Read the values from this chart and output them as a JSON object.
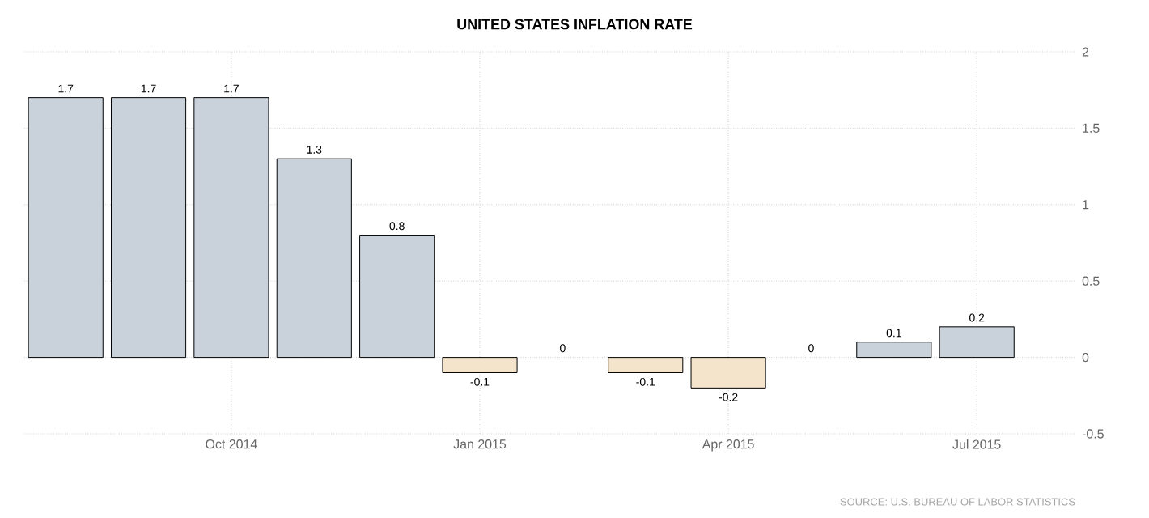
{
  "chart_data": {
    "type": "bar",
    "title": "UNITED STATES INFLATION RATE",
    "categories": [
      null,
      null,
      "Oct 2014",
      null,
      null,
      "Jan 2015",
      null,
      null,
      "Apr 2015",
      null,
      null,
      "Jul 2015"
    ],
    "values": [
      1.7,
      1.7,
      1.7,
      1.3,
      0.8,
      -0.1,
      0,
      -0.1,
      -0.2,
      0,
      0.1,
      0.2
    ],
    "colors": [
      "#c9d1db",
      "#c9d1db",
      "#c9d1db",
      "#c9d1db",
      "#c9d1db",
      "#f3e4cb",
      "#c9d1db",
      "#f3e4cb",
      "#f3e4cb",
      "#c9d1db",
      "#c9d1db",
      "#c9d1db"
    ],
    "ylim": [
      -0.5,
      2
    ],
    "yticks": [
      -0.5,
      0,
      0.5,
      1,
      1.5,
      2
    ],
    "grid": true,
    "data_labels": true,
    "annotations": [
      "SOURCE: U.S. BUREAU OF LABOR STATISTICS"
    ]
  }
}
